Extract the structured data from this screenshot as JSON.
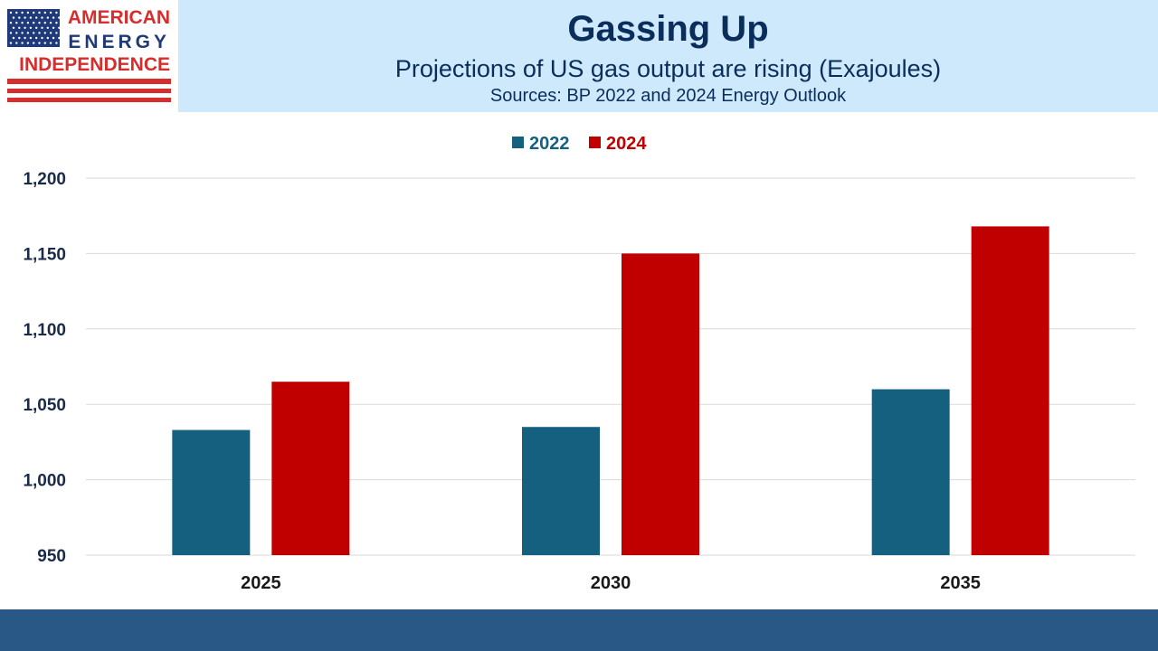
{
  "logo": {
    "line1": "AMERICAN",
    "line2": "ENERGY",
    "line3": "INDEPENDENCE",
    "flag_blue": "#1f3a7a",
    "flag_red": "#d62d2d"
  },
  "header": {
    "title": "Gassing Up",
    "subtitle": "Projections of US gas output are rising (Exajoules)",
    "source": "Sources: BP 2022 and 2024 Energy Outlook"
  },
  "colors": {
    "header_bg": "#cde9fb",
    "header_text": "#0b2d5c",
    "series_2022": "#16607f",
    "series_2024": "#c00000",
    "footer_bar": "#2a5886"
  },
  "chart_data": {
    "type": "bar",
    "categories": [
      "2025",
      "2030",
      "2035"
    ],
    "series": [
      {
        "name": "2022",
        "values": [
          1033,
          1035,
          1060
        ]
      },
      {
        "name": "2024",
        "values": [
          1065,
          1150,
          1168
        ]
      }
    ],
    "ylim": [
      950,
      1200
    ],
    "yticks": [
      950,
      1000,
      1050,
      1100,
      1150,
      1200
    ],
    "ytick_labels": [
      "950",
      "1,000",
      "1,050",
      "1,100",
      "1,150",
      "1,200"
    ],
    "grid": true,
    "legend": "top-center"
  }
}
